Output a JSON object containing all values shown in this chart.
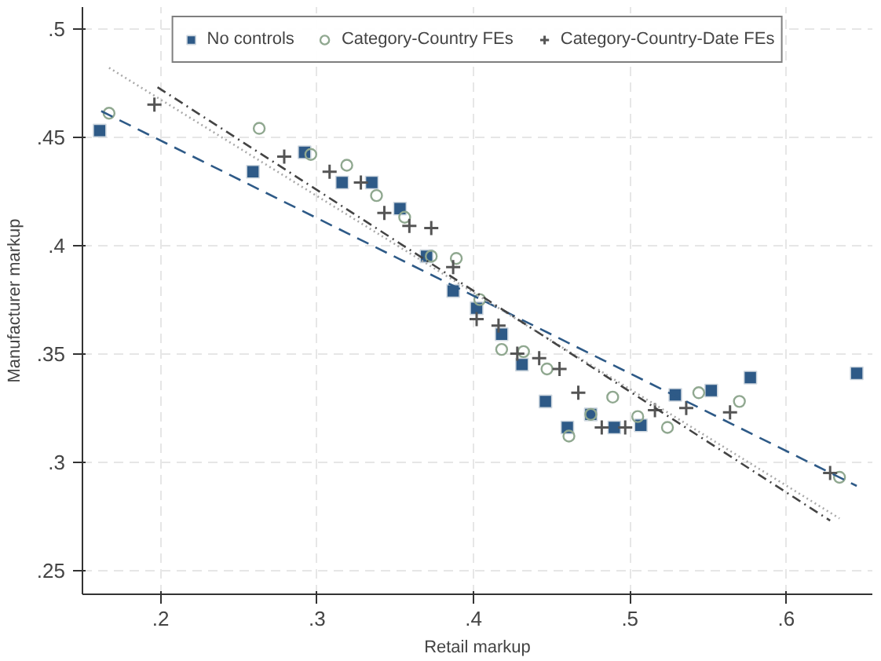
{
  "chart_data": {
    "type": "scatter",
    "xlabel": "Retail markup",
    "ylabel": "Manufacturer markup",
    "xlim": [
      0.15,
      0.655
    ],
    "ylim": [
      0.239,
      0.51
    ],
    "xticks": [
      {
        "value": 0.2,
        "label": ".2"
      },
      {
        "value": 0.3,
        "label": ".3"
      },
      {
        "value": 0.4,
        "label": ".4"
      },
      {
        "value": 0.5,
        "label": ".5"
      },
      {
        "value": 0.6,
        "label": ".6"
      }
    ],
    "yticks": [
      {
        "value": 0.25,
        "label": ".25"
      },
      {
        "value": 0.3,
        "label": ".3"
      },
      {
        "value": 0.35,
        "label": ".35"
      },
      {
        "value": 0.4,
        "label": ".4"
      },
      {
        "value": 0.45,
        "label": ".45"
      },
      {
        "value": 0.5,
        "label": ".5"
      }
    ],
    "grid": true,
    "legend": "top",
    "series": [
      {
        "name": "No controls",
        "color": "#2e5a87",
        "marker": "square",
        "x": [
          0.161,
          0.259,
          0.292,
          0.316,
          0.335,
          0.353,
          0.37,
          0.387,
          0.402,
          0.418,
          0.431,
          0.446,
          0.46,
          0.475,
          0.49,
          0.507,
          0.529,
          0.552,
          0.577,
          0.645
        ],
        "values": [
          0.453,
          0.434,
          0.443,
          0.429,
          0.429,
          0.417,
          0.395,
          0.379,
          0.371,
          0.359,
          0.345,
          0.328,
          0.316,
          0.322,
          0.316,
          0.317,
          0.331,
          0.333,
          0.339,
          0.341
        ]
      },
      {
        "name": "Category-Country FEs",
        "color": "#90a890",
        "marker": "circle",
        "x": [
          0.167,
          0.263,
          0.296,
          0.319,
          0.338,
          0.356,
          0.373,
          0.389,
          0.404,
          0.418,
          0.432,
          0.447,
          0.461,
          0.475,
          0.489,
          0.505,
          0.524,
          0.544,
          0.57,
          0.634
        ],
        "values": [
          0.461,
          0.454,
          0.442,
          0.437,
          0.423,
          0.413,
          0.395,
          0.394,
          0.375,
          0.352,
          0.351,
          0.343,
          0.312,
          0.322,
          0.33,
          0.321,
          0.316,
          0.332,
          0.328,
          0.293
        ]
      },
      {
        "name": "Category-Country-Date FEs",
        "color": "#555555",
        "marker": "cross",
        "x": [
          0.196,
          0.279,
          0.308,
          0.328,
          0.343,
          0.359,
          0.373,
          0.387,
          0.402,
          0.416,
          0.428,
          0.442,
          0.455,
          0.467,
          0.482,
          0.497,
          0.516,
          0.536,
          0.564,
          0.628
        ],
        "values": [
          0.465,
          0.441,
          0.434,
          0.429,
          0.415,
          0.409,
          0.408,
          0.39,
          0.366,
          0.363,
          0.35,
          0.348,
          0.343,
          0.332,
          0.316,
          0.316,
          0.324,
          0.325,
          0.323,
          0.295
        ]
      },
      {
        "type": "line",
        "color": "#2e5a87",
        "line_style": "dashed",
        "x": [
          0.162,
          0.645
        ],
        "values": [
          0.462,
          0.289
        ]
      },
      {
        "type": "line",
        "color": "#aaaaaa",
        "line_style": "dotted",
        "x": [
          0.167,
          0.634
        ],
        "values": [
          0.482,
          0.274
        ]
      },
      {
        "type": "line",
        "color": "#444444",
        "line_style": "dashdot",
        "x": [
          0.198,
          0.628
        ],
        "values": [
          0.473,
          0.273
        ]
      }
    ]
  }
}
